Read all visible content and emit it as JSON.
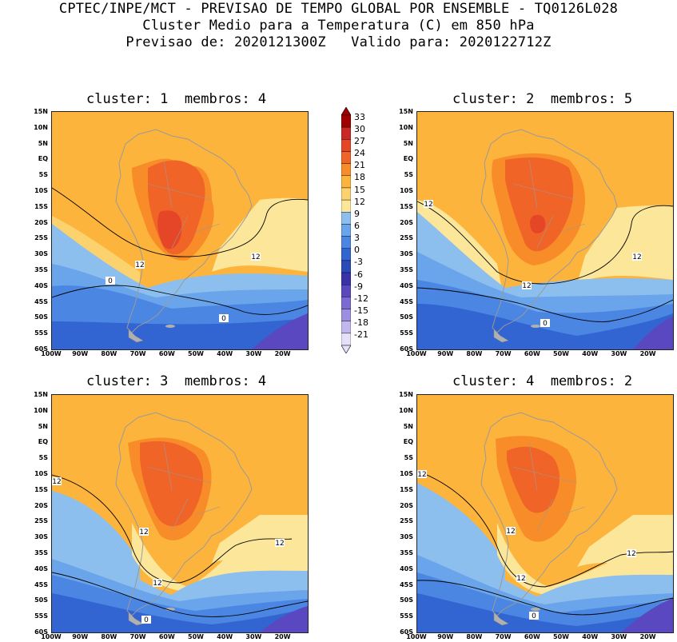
{
  "header": {
    "line1": "CPTEC/INPE/MCT - PREVISAO DE TEMPO GLOBAL POR ENSEMBLE - TQ0126L028",
    "line2": "Cluster Medio para a Temperatura (C) em 850 hPa",
    "line3": "Previsao de: 2020121300Z   Valido para: 2020122712Z"
  },
  "panels": [
    {
      "title": "cluster: 1  membros: 4",
      "contour_labels": [
        "12",
        "12",
        "0",
        "0"
      ]
    },
    {
      "title": "cluster: 2  membros: 5",
      "contour_labels": [
        "12",
        "12",
        "12",
        "0"
      ]
    },
    {
      "title": "cluster: 3  membros: 4",
      "contour_labels": [
        "12",
        "12",
        "12",
        "12",
        "0"
      ]
    },
    {
      "title": "cluster: 4  membros: 2",
      "contour_labels": [
        "12",
        "12",
        "12",
        "12",
        "0"
      ]
    }
  ],
  "lat_labels": [
    "15N",
    "10N",
    "5N",
    "EQ",
    "5S",
    "10S",
    "15S",
    "20S",
    "25S",
    "30S",
    "35S",
    "40S",
    "45S",
    "50S",
    "55S",
    "60S"
  ],
  "lon_labels": [
    "100W",
    "90W",
    "80W",
    "70W",
    "60W",
    "50W",
    "40W",
    "30W",
    "20W"
  ],
  "colorbar": {
    "labels": [
      "33",
      "30",
      "27",
      "24",
      "21",
      "18",
      "15",
      "12",
      "9",
      "6",
      "3",
      "0",
      "-3",
      "-6",
      "-9",
      "-12",
      "-15",
      "-18",
      "-21"
    ],
    "colors": [
      "#a00000",
      "#c82828",
      "#e64628",
      "#f06428",
      "#f88c28",
      "#fcb43c",
      "#fcd26e",
      "#fce69a",
      "#8cbeee",
      "#6aa4ea",
      "#4a86e2",
      "#3264d2",
      "#2a4ab8",
      "#3a32a8",
      "#5a48c0",
      "#7a6ad2",
      "#9c8ee0",
      "#c2b6ee",
      "#e6e0f8"
    ],
    "arrow_top": "#a00000",
    "arrow_bottom": "#e6e0f8"
  }
}
